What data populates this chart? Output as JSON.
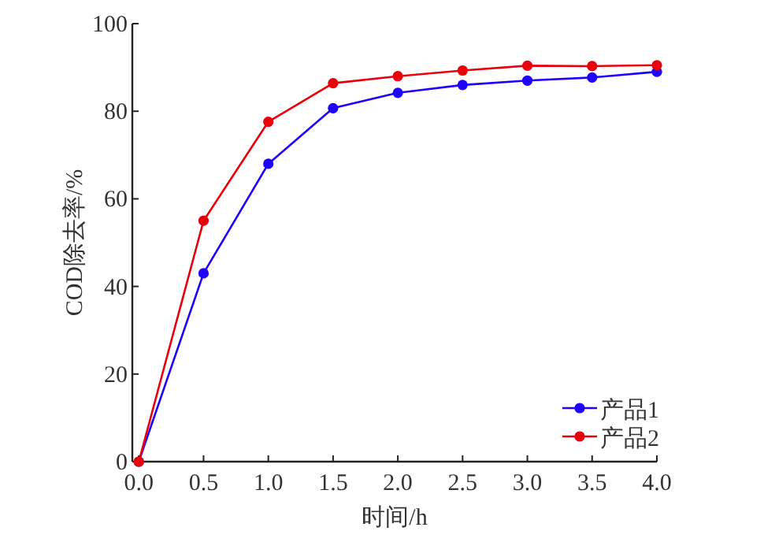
{
  "chart_data": {
    "type": "line",
    "xlabel": "时间/h",
    "ylabel": "COD除去率/%",
    "x": [
      0,
      0.5,
      1.0,
      1.5,
      2.0,
      2.5,
      3.0,
      3.5,
      4.0
    ],
    "series": [
      {
        "name": "产品1",
        "color": "#1f00ff",
        "values": [
          0,
          43,
          68,
          80.7,
          84.2,
          86,
          87,
          87.7,
          89
        ]
      },
      {
        "name": "产品2",
        "color": "#e8000b",
        "values": [
          0,
          55,
          77.6,
          86.4,
          88,
          89.3,
          90.4,
          90.3,
          90.5
        ]
      }
    ],
    "xlim": [
      -0.05,
      4.0
    ],
    "xticks": [
      {
        "value": 0,
        "label": "0.0"
      },
      {
        "value": 0.5,
        "label": "0.5"
      },
      {
        "value": 1,
        "label": "1.0"
      },
      {
        "value": 1.5,
        "label": "1.5"
      },
      {
        "value": 2,
        "label": "2.0"
      },
      {
        "value": 2.5,
        "label": "2.5"
      },
      {
        "value": 3,
        "label": "3.0"
      },
      {
        "value": 3.5,
        "label": "3.5"
      },
      {
        "value": 4,
        "label": "4.0"
      }
    ],
    "ylim": [
      0,
      100
    ],
    "yticks": [
      0,
      20,
      40,
      60,
      80,
      100
    ],
    "marker": "circle",
    "line_style": "solid",
    "legend": "bottom right",
    "grid": false
  }
}
